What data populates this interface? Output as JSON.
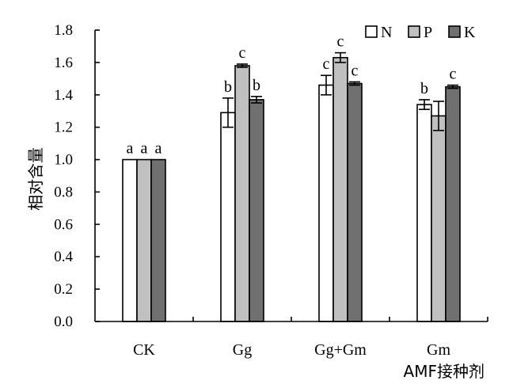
{
  "chart_data": {
    "type": "bar",
    "title": "",
    "xlabel": "AMF接种剂",
    "ylabel": "相对含量",
    "ylim": [
      0,
      1.8
    ],
    "yticks": [
      "0.0",
      "0.2",
      "0.4",
      "0.6",
      "0.8",
      "1.0",
      "1.2",
      "1.4",
      "1.6",
      "1.8"
    ],
    "categories": [
      "CK",
      "Gg",
      "Gg+Gm",
      "Gm"
    ],
    "legend_position": "top-right",
    "grid": false,
    "series": [
      {
        "name": "N",
        "color": "#ffffff",
        "values": [
          1.0,
          1.29,
          1.46,
          1.34
        ],
        "errors": [
          0.0,
          0.09,
          0.06,
          0.03
        ],
        "labels": [
          "a",
          "b",
          "c",
          "b"
        ]
      },
      {
        "name": "P",
        "color": "#c0c0c0",
        "values": [
          1.0,
          1.58,
          1.63,
          1.27
        ],
        "errors": [
          0.0,
          0.01,
          0.03,
          0.09
        ],
        "labels": [
          "a",
          "c",
          "c",
          ""
        ]
      },
      {
        "name": "K",
        "color": "#707070",
        "values": [
          1.0,
          1.37,
          1.47,
          1.45
        ],
        "errors": [
          0.0,
          0.02,
          0.01,
          0.01
        ],
        "labels": [
          "a",
          "b",
          "c",
          "c"
        ]
      }
    ]
  }
}
